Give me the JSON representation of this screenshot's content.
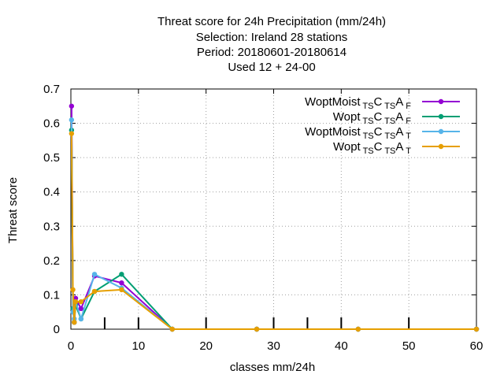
{
  "chart_data": {
    "type": "line",
    "title_lines": [
      "Threat score  for 24h Precipitation (mm/24h)",
      "Selection: Ireland     28 stations",
      "Period: 20180601-20180614",
      "Used  12 + 24-00"
    ],
    "xlabel": "classes mm/24h",
    "ylabel": "Threat score",
    "xlim": [
      0,
      60
    ],
    "ylim": [
      0,
      0.7
    ],
    "xticks": [
      0,
      10,
      20,
      30,
      40,
      50,
      60
    ],
    "yticks": [
      0,
      0.1,
      0.2,
      0.3,
      0.4,
      0.5,
      0.6,
      0.7
    ],
    "ytick_labels": [
      "0",
      "0.1",
      "0.2",
      "0.3",
      "0.4",
      "0.5",
      "0.6",
      "0.7"
    ],
    "grid": true,
    "legend_position": "top-right",
    "x": [
      0.1,
      0.3,
      0.5,
      0.7,
      1.5,
      3.5,
      7.5,
      15,
      27.5,
      42.5,
      60
    ],
    "series": [
      {
        "name": "WoptMoist",
        "legend": {
          "main1": "WoptMoist",
          "sub1": "TS",
          "main2": "C",
          "sub2": "TS",
          "main3": "A",
          "sub3": "F"
        },
        "color": "#9400d3",
        "values": [
          0.65,
          0.06,
          0.02,
          0.09,
          0.06,
          0.155,
          0.135,
          0.0,
          0.0,
          0.0,
          0.0
        ]
      },
      {
        "name": "Wopt",
        "legend": {
          "main1": "Wopt",
          "sub1": "TS",
          "main2": "C",
          "sub2": "TS",
          "main3": "A",
          "sub3": "F"
        },
        "color": "#009e73",
        "values": [
          0.58,
          0.06,
          0.02,
          0.07,
          0.03,
          0.11,
          0.16,
          0.0,
          0.0,
          0.0,
          0.0
        ]
      },
      {
        "name": "WoptMoist",
        "legend": {
          "main1": "WoptMoist",
          "sub1": "TS",
          "main2": "C",
          "sub2": "TS",
          "main3": "A",
          "sub3": "T"
        },
        "color": "#56b4e9",
        "values": [
          0.61,
          0.05,
          0.03,
          0.08,
          0.03,
          0.16,
          0.12,
          0.0,
          0.0,
          0.0,
          0.0
        ]
      },
      {
        "name": "Wopt",
        "legend": {
          "main1": "Wopt",
          "sub1": "TS",
          "main2": "C",
          "sub2": "TS",
          "main3": "A",
          "sub3": "T"
        },
        "color": "#e69f00",
        "values": [
          0.57,
          0.115,
          0.02,
          0.08,
          0.08,
          0.11,
          0.115,
          0.0,
          0.0,
          0.0,
          0.0
        ]
      }
    ],
    "obs_markers_x": [
      5,
      10,
      20,
      30,
      35,
      40,
      50
    ]
  }
}
